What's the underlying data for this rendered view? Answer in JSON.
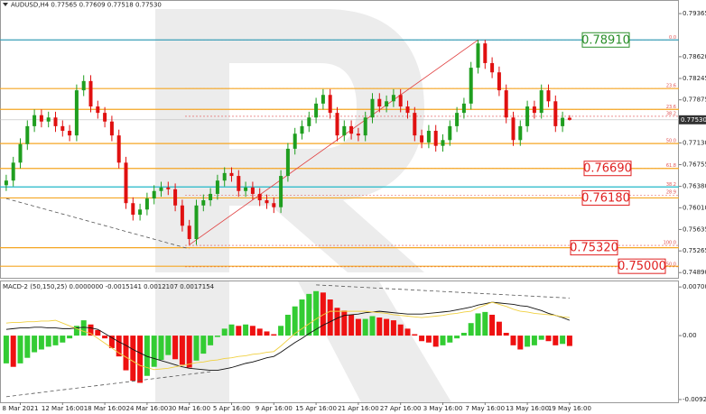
{
  "chart_data": [
    {
      "type": "candlestick",
      "title": "AUDUSD,H4  0.77565 0.77609 0.77518 0.77530",
      "categories": [
        null,
        null,
        "8 Mar 2021",
        null,
        null,
        null,
        null,
        null,
        "12 Mar 16:00",
        null,
        null,
        null,
        null,
        null,
        "18 Mar 16:00",
        null,
        null,
        null,
        null,
        null,
        "24 Mar 16:00",
        null,
        null,
        null,
        null,
        null,
        "30 Mar 16:00",
        null,
        null,
        null,
        null,
        null,
        "5 Apr 16:00",
        null,
        null,
        null,
        null,
        null,
        "9 Apr 16:00",
        null,
        null,
        null,
        null,
        null,
        "15 Apr 16:00",
        null,
        null,
        null,
        null,
        null,
        "21 Apr 16:00",
        null,
        null,
        null,
        null,
        null,
        "27 Apr 16:00",
        null,
        null,
        null,
        null,
        null,
        "3 May 16:00",
        null,
        null,
        null,
        null,
        null,
        "7 May 16:00",
        null,
        null,
        null,
        null,
        null,
        "13 May 16:00",
        null,
        null,
        null,
        null,
        null,
        "19 May 16:00"
      ],
      "open": [
        0.764,
        0.7648,
        0.7679,
        0.7711,
        0.7742,
        0.7761,
        0.775,
        0.7757,
        0.7742,
        0.7734,
        0.7726,
        0.7804,
        0.782,
        0.7776,
        0.7765,
        0.775,
        0.7726,
        0.7679,
        0.7609,
        0.7589,
        0.7598,
        0.7617,
        0.763,
        0.7636,
        0.7633,
        0.7605,
        0.757,
        0.7547,
        0.7605,
        0.7614,
        0.7625,
        0.7648,
        0.7661,
        0.7656,
        0.763,
        0.7636,
        0.7625,
        0.7614,
        0.7609,
        0.7602,
        0.7656,
        0.7703,
        0.7729,
        0.7742,
        0.7757,
        0.7781,
        0.7796,
        0.7765,
        0.7726,
        0.7742,
        0.7729,
        0.7726,
        0.7757,
        0.7789,
        0.7776,
        0.7785,
        0.7796,
        0.7776,
        0.7765,
        0.7726,
        0.7714,
        0.7734,
        0.7708,
        0.7718,
        0.7742,
        0.7765,
        0.7781,
        0.7843,
        0.7885,
        0.7851,
        0.7835,
        0.7804,
        0.7757,
        0.7718,
        0.7742,
        0.7776,
        0.7765,
        0.7804,
        0.7785,
        0.7742,
        0.77565
      ],
      "high": [
        0.7658,
        0.7689,
        0.7721,
        0.7752,
        0.7771,
        0.7771,
        0.7767,
        0.7767,
        0.7752,
        0.7744,
        0.7814,
        0.783,
        0.783,
        0.7786,
        0.7775,
        0.776,
        0.7736,
        0.7689,
        0.7619,
        0.7608,
        0.7627,
        0.764,
        0.7646,
        0.7646,
        0.7643,
        0.7615,
        0.758,
        0.7615,
        0.7624,
        0.7635,
        0.7658,
        0.7671,
        0.7671,
        0.7666,
        0.7646,
        0.7646,
        0.7635,
        0.7624,
        0.7619,
        0.7666,
        0.7713,
        0.7739,
        0.7752,
        0.7767,
        0.7791,
        0.7806,
        0.7806,
        0.7775,
        0.7752,
        0.7752,
        0.7739,
        0.7767,
        0.7799,
        0.7799,
        0.7795,
        0.7806,
        0.7806,
        0.7786,
        0.7775,
        0.7736,
        0.7744,
        0.7744,
        0.7728,
        0.7752,
        0.7775,
        0.7791,
        0.7853,
        0.7891,
        0.7891,
        0.7861,
        0.7845,
        0.7814,
        0.7767,
        0.7752,
        0.7786,
        0.7786,
        0.7814,
        0.7814,
        0.7795,
        0.7767,
        0.77609
      ],
      "low": [
        0.763,
        0.7638,
        0.7669,
        0.7701,
        0.7732,
        0.774,
        0.774,
        0.7732,
        0.7724,
        0.7716,
        0.7716,
        0.7794,
        0.7766,
        0.7755,
        0.774,
        0.7716,
        0.7669,
        0.7599,
        0.7579,
        0.7579,
        0.7588,
        0.7607,
        0.762,
        0.7623,
        0.7595,
        0.756,
        0.7537,
        0.7537,
        0.7595,
        0.7604,
        0.7615,
        0.7638,
        0.7646,
        0.762,
        0.762,
        0.7615,
        0.7604,
        0.7599,
        0.7592,
        0.7592,
        0.7646,
        0.7693,
        0.7719,
        0.7732,
        0.7747,
        0.7771,
        0.7755,
        0.7716,
        0.7716,
        0.7719,
        0.7716,
        0.7716,
        0.7747,
        0.7766,
        0.7766,
        0.7775,
        0.7766,
        0.7755,
        0.7716,
        0.7704,
        0.7704,
        0.7698,
        0.7698,
        0.7708,
        0.7732,
        0.7755,
        0.7771,
        0.7833,
        0.7841,
        0.7825,
        0.7794,
        0.7747,
        0.7708,
        0.7708,
        0.7732,
        0.7755,
        0.7755,
        0.7775,
        0.7732,
        0.7732,
        0.77518
      ],
      "close": [
        0.7648,
        0.7679,
        0.7711,
        0.7742,
        0.7761,
        0.775,
        0.7757,
        0.7742,
        0.7734,
        0.7726,
        0.7804,
        0.782,
        0.7776,
        0.7765,
        0.775,
        0.7726,
        0.7679,
        0.7609,
        0.7589,
        0.7598,
        0.7617,
        0.763,
        0.7636,
        0.7633,
        0.7605,
        0.757,
        0.7547,
        0.7605,
        0.7614,
        0.7625,
        0.7648,
        0.7661,
        0.7656,
        0.763,
        0.7636,
        0.7625,
        0.7614,
        0.7609,
        0.7602,
        0.7656,
        0.7703,
        0.7729,
        0.7742,
        0.7757,
        0.7781,
        0.7796,
        0.7765,
        0.7726,
        0.7742,
        0.7729,
        0.7726,
        0.7757,
        0.7789,
        0.7776,
        0.7785,
        0.7796,
        0.7776,
        0.7765,
        0.7726,
        0.7714,
        0.7734,
        0.7708,
        0.7718,
        0.7742,
        0.7765,
        0.7781,
        0.7843,
        0.7885,
        0.7851,
        0.7835,
        0.7804,
        0.7757,
        0.7718,
        0.7742,
        0.7776,
        0.7765,
        0.7804,
        0.7785,
        0.7742,
        0.77565,
        0.7753
      ],
      "up_color": "#1f9e1f",
      "down_color": "#e01010",
      "ylim": [
        0.748,
        0.796
      ],
      "yticks": [
        0.79365,
        {
          "value": 0.7862,
          "label": "0.78620"
        },
        0.78245,
        0.77875,
        {
          "value": 0.7713,
          "label": "0.77130"
        },
        0.76755,
        {
          "value": 0.7638,
          "label": "0.76380"
        },
        {
          "value": 0.7601,
          "label": "0.76010"
        },
        0.75635,
        0.75265,
        {
          "value": 0.7489,
          "label": "0.74890"
        }
      ],
      "last_price": {
        "value": 0.7753,
        "label": "0.77530"
      },
      "fib_levels": [
        {
          "label": "0.0",
          "value": 0.7891,
          "color": "#e05050"
        },
        {
          "label": "23.6",
          "value": 0.7807,
          "color": "#e05050"
        },
        {
          "label": "23.6",
          "value": 0.7771,
          "color": "#e05050"
        },
        {
          "label": "38.2",
          "value": 0.7759,
          "color": "#e05050"
        },
        {
          "label": "50.0",
          "value": 0.7712,
          "color": "#e05050"
        },
        {
          "label": "61.8",
          "value": 0.7669,
          "color": "#e05050"
        },
        {
          "label": "38.2",
          "value": 0.7637,
          "color": "#e05050"
        },
        {
          "label": "28.9",
          "value": 0.7623,
          "color": "#e05050"
        },
        {
          "label": "100.0",
          "value": 0.7536,
          "color": "#e05050"
        },
        {
          "label": "50.0",
          "value": 0.7499,
          "color": "#e05050"
        }
      ],
      "levels": [
        {
          "value": 0.7891,
          "label": "0.78910",
          "color": "#2a8f2a",
          "line_color": "#3a9fb8"
        },
        {
          "value": 0.7807,
          "color": "#f5a623",
          "line_color": "#f5a623"
        },
        {
          "value": 0.7771,
          "color": "#f5a623",
          "line_color": "#f5a623"
        },
        {
          "value": 0.7712,
          "color": "#f5a623",
          "line_color": "#f5a623"
        },
        {
          "value": 0.7669,
          "label": "0.76690",
          "color": "#e02020",
          "line_color": "#f5a623"
        },
        {
          "value": 0.7637,
          "color": "#20b8c8",
          "line_color": "#20b8c8"
        },
        {
          "value": 0.7618,
          "label": "0.76180",
          "color": "#e02020",
          "line_color": "#f5a623"
        },
        {
          "value": 0.7532,
          "label": "0.75320",
          "color": "#e02020",
          "line_color": "#f5a623"
        },
        {
          "value": 0.75,
          "label": "0.75000",
          "color": "#e02020",
          "line_color": "#f5a623"
        }
      ],
      "trendlines": [
        {
          "from": [
            26,
            0.7537
          ],
          "to": [
            67,
            0.7891
          ],
          "color": "#e04040"
        },
        {
          "from": [
            0,
            0.7617
          ],
          "to": [
            26,
            0.753
          ],
          "color": "#555555",
          "dashed": true
        }
      ]
    },
    {
      "type": "macd",
      "title": "MACD-2 (50,150,25) 0.0000000 -0.0015141 0.0012107 0.0017154",
      "ylim": [
        -0.0096,
        0.0078
      ],
      "yticks": [
        0.0070007,
        {
          "value": 0,
          "label": "0.00"
        },
        -0.009203
      ],
      "up_color": "#33cc33",
      "down_color": "#ee1111",
      "histogram": [
        -0.004,
        -0.0045,
        -0.004,
        -0.0032,
        -0.0024,
        -0.002,
        -0.0016,
        -0.0014,
        -0.001,
        -0.0004,
        0.0014,
        0.0022,
        0.0016,
        0.0008,
        -0.0004,
        -0.0018,
        -0.003,
        -0.005,
        -0.0065,
        -0.0068,
        -0.0058,
        -0.0045,
        -0.0035,
        -0.0028,
        -0.0034,
        -0.0042,
        -0.0046,
        -0.0036,
        -0.0026,
        -0.0014,
        -0.0002,
        0.001,
        0.0016,
        0.0014,
        0.0016,
        0.0014,
        0.001,
        0.0006,
        0.0002,
        0.0014,
        0.003,
        0.0042,
        0.0052,
        0.006,
        0.0064,
        0.0062,
        0.0052,
        0.004,
        0.0036,
        0.003,
        0.0024,
        0.0024,
        0.0028,
        0.0026,
        0.0024,
        0.0022,
        0.0016,
        0.001,
        0.0002,
        -0.0008,
        -0.001,
        -0.0016,
        -0.0014,
        -0.001,
        -0.0004,
        0.0004,
        0.0018,
        0.0032,
        0.0034,
        0.003,
        0.002,
        0.0004,
        -0.0014,
        -0.002,
        -0.0016,
        -0.0014,
        -0.0006,
        -0.0008,
        -0.0014,
        -0.0012,
        -0.0015
      ],
      "lines": [
        {
          "color": "#111111",
          "values": [
            0.0009,
            0.001,
            0.0011,
            0.0011,
            0.0012,
            0.0012,
            0.0011,
            0.0011,
            0.001,
            0.001,
            0.0011,
            0.0012,
            0.0011,
            0.0009,
            0.0003,
            -0.0003,
            -0.0009,
            -0.0014,
            -0.002,
            -0.0025,
            -0.003,
            -0.0033,
            -0.0036,
            -0.0039,
            -0.0042,
            -0.0045,
            -0.0047,
            -0.0048,
            -0.0049,
            -0.005,
            -0.005,
            -0.0048,
            -0.0046,
            -0.0043,
            -0.004,
            -0.0038,
            -0.0035,
            -0.0032,
            -0.003,
            -0.0024,
            -0.0017,
            -0.001,
            -0.0004,
            0.0003,
            0.0009,
            0.0015,
            0.002,
            0.0025,
            0.0029,
            0.003,
            0.0031,
            0.0033,
            0.0034,
            0.0035,
            0.0034,
            0.0033,
            0.0032,
            0.0031,
            0.0031,
            0.0031,
            0.0032,
            0.0033,
            0.0034,
            0.0035,
            0.0037,
            0.0039,
            0.0041,
            0.0044,
            0.0046,
            0.0048,
            0.0047,
            0.0046,
            0.0045,
            0.0043,
            0.0042,
            0.0039,
            0.0036,
            0.0032,
            0.0029,
            0.0026,
            0.0022
          ]
        },
        {
          "color": "#f0d040",
          "values": [
            0.0018,
            0.0019,
            0.0019,
            0.002,
            0.002,
            0.0021,
            0.0021,
            0.0022,
            0.0018,
            0.0014,
            0.001,
            0.0006,
            0.0003,
            -0.0004,
            -0.0011,
            -0.0018,
            -0.0025,
            -0.0031,
            -0.0037,
            -0.0043,
            -0.0046,
            -0.0049,
            -0.0048,
            -0.0047,
            -0.0045,
            -0.0043,
            -0.0041,
            -0.0039,
            -0.0038,
            -0.0036,
            -0.0035,
            -0.0033,
            -0.0032,
            -0.003,
            -0.0029,
            -0.0027,
            -0.0026,
            -0.0024,
            -0.0023,
            -0.0015,
            -0.0006,
            0.0003,
            0.001,
            0.0017,
            0.0024,
            0.003,
            0.0035,
            0.0035,
            0.0035,
            0.0035,
            0.0035,
            0.0035,
            0.0034,
            0.0033,
            0.0032,
            0.003,
            0.0029,
            0.0028,
            0.0027,
            0.0026,
            0.0027,
            0.0028,
            0.0029,
            0.0031,
            0.0032,
            0.0034,
            0.0035,
            0.004,
            0.0044,
            0.0048,
            0.0045,
            0.0042,
            0.0038,
            0.0035,
            0.0034,
            0.0032,
            0.0031,
            0.003,
            0.0029,
            0.0027,
            0.0026
          ]
        }
      ],
      "trendlines": [
        {
          "from": [
            44,
            0.0073
          ],
          "to": [
            80,
            0.0054
          ],
          "color": "#555555",
          "dashed": true
        },
        {
          "from": [
            0,
            -0.0088
          ],
          "to": [
            29,
            -0.0052
          ],
          "color": "#555555",
          "dashed": true
        }
      ]
    }
  ]
}
